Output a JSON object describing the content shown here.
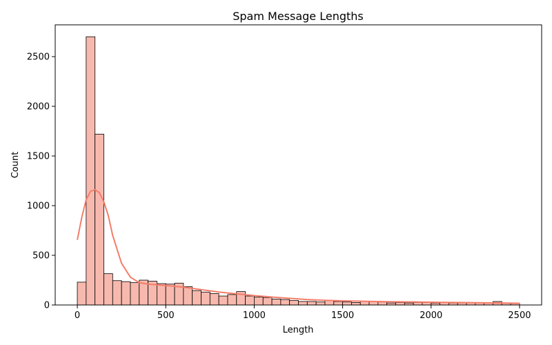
{
  "chart_data": {
    "type": "bar",
    "title": "Spam Message Lengths",
    "xlabel": "Length",
    "ylabel": "Count",
    "xlim": [
      -125,
      2625
    ],
    "ylim": [
      0,
      2820
    ],
    "xticks": [
      0,
      500,
      1000,
      1500,
      2000,
      2500
    ],
    "yticks": [
      0,
      500,
      1000,
      1500,
      2000,
      2500
    ],
    "bins": {
      "start": 0,
      "width": 50,
      "counts": [
        230,
        2700,
        1720,
        315,
        245,
        235,
        225,
        250,
        240,
        215,
        210,
        220,
        185,
        145,
        130,
        115,
        90,
        105,
        135,
        90,
        80,
        75,
        60,
        55,
        45,
        35,
        35,
        30,
        45,
        35,
        30,
        25,
        35,
        35,
        30,
        20,
        25,
        20,
        25,
        25,
        20,
        25,
        20,
        20,
        20,
        25,
        20,
        35,
        20,
        15
      ]
    },
    "kde": {
      "x": [
        0,
        25,
        50,
        75,
        100,
        125,
        150,
        175,
        200,
        250,
        300,
        350,
        400,
        500,
        600,
        700,
        800,
        900,
        1000,
        1100,
        1200,
        1300,
        1400,
        1500,
        1600,
        1700,
        1800,
        1900,
        2000,
        2200,
        2400,
        2500
      ],
      "y": [
        655,
        880,
        1060,
        1145,
        1160,
        1130,
        1040,
        900,
        700,
        420,
        280,
        225,
        210,
        195,
        180,
        155,
        130,
        112,
        95,
        80,
        67,
        55,
        47,
        42,
        38,
        35,
        32,
        30,
        28,
        24,
        20,
        17
      ]
    },
    "colors": {
      "bar_fill": "#f7b9ae",
      "bar_edge": "#000000",
      "kde_line": "#f47c69"
    }
  }
}
